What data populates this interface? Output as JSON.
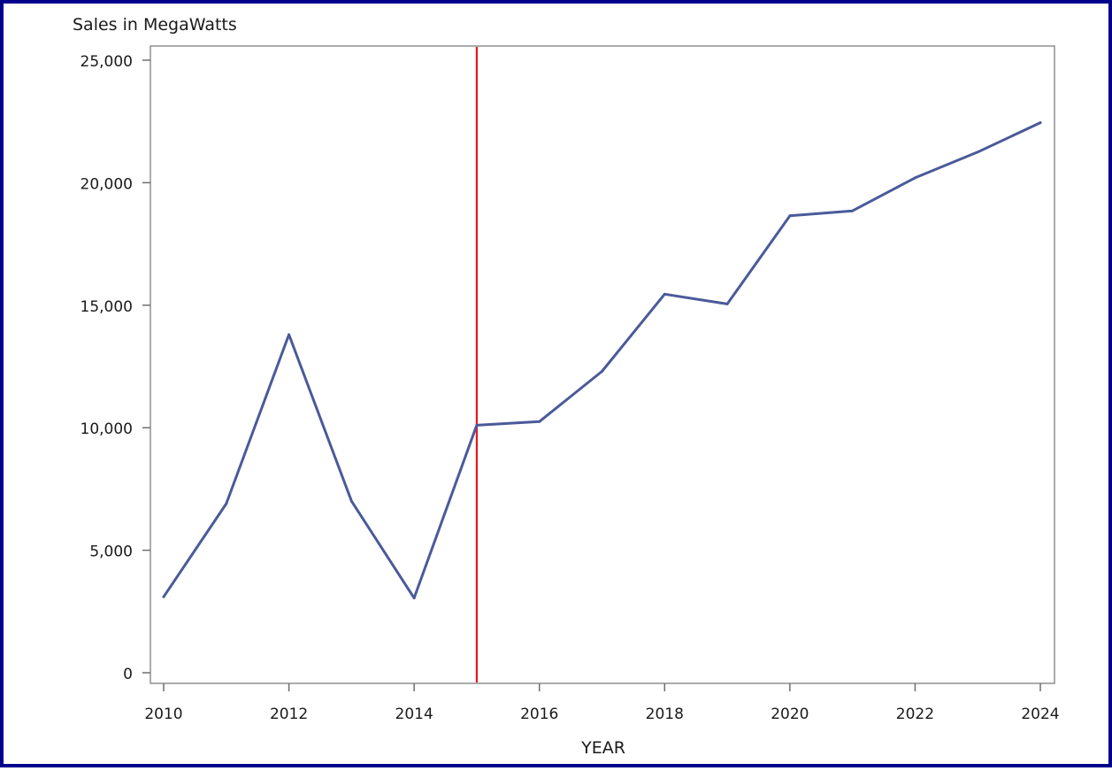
{
  "chart_data": {
    "type": "line",
    "title": "",
    "ylabel": "Sales in MegaWatts",
    "xlabel": "YEAR",
    "xlim": [
      2010,
      2024
    ],
    "ylim": [
      0,
      25000
    ],
    "x_ticks": [
      2010,
      2012,
      2014,
      2016,
      2018,
      2020,
      2022,
      2024
    ],
    "x_tick_labels": [
      "2010",
      "2012",
      "2014",
      "2016",
      "2018",
      "2020",
      "2022",
      "2024"
    ],
    "y_ticks": [
      0,
      5000,
      10000,
      15000,
      20000,
      25000
    ],
    "y_tick_labels": [
      "0",
      "5,000",
      "10,000",
      "15,000",
      "20,000",
      "25,000"
    ],
    "grid": false,
    "legend": "none",
    "series": [
      {
        "color": "#4a5a9a",
        "x": [
          2010,
          2011,
          2012,
          2013,
          2014,
          2015,
          2016,
          2017,
          2018,
          2019,
          2020,
          2021,
          2022,
          2023,
          2024
        ],
        "values": [
          3100,
          6900,
          13800,
          7000,
          3050,
          10100,
          10250,
          12300,
          15450,
          15050,
          18650,
          18850,
          20200,
          21250,
          22450
        ]
      }
    ],
    "reference_lines": [
      {
        "axis": "x",
        "value": 2015,
        "color": "#e8161b"
      }
    ]
  }
}
